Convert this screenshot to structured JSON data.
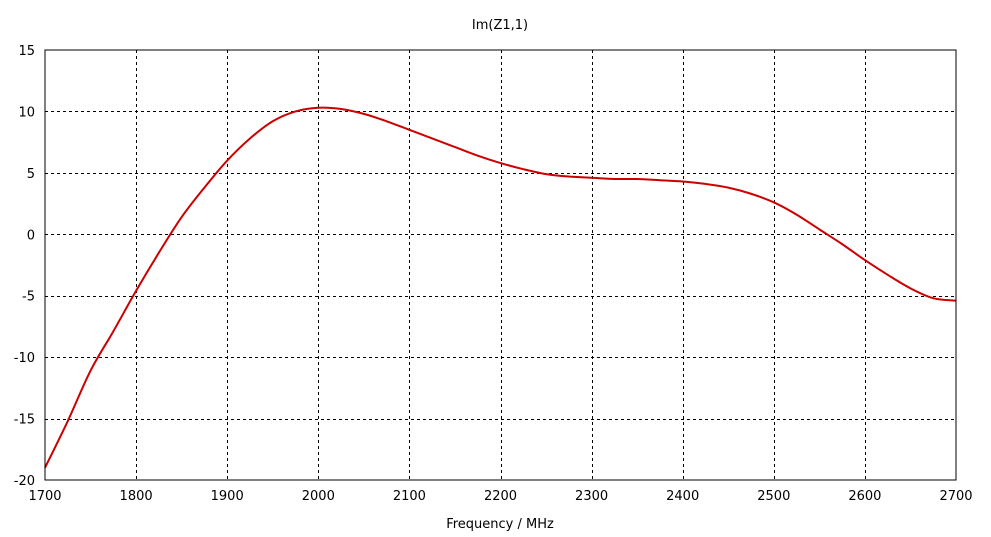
{
  "chart_data": {
    "type": "line",
    "title": "Im(Z1,1)",
    "xlabel": "Frequency / MHz",
    "ylabel": "",
    "xlim": [
      1700,
      2700
    ],
    "ylim": [
      -20,
      15
    ],
    "xticks": [
      1700,
      1800,
      1900,
      2000,
      2100,
      2200,
      2300,
      2400,
      2500,
      2600,
      2700
    ],
    "yticks": [
      -20,
      -15,
      -10,
      -5,
      0,
      5,
      10,
      15
    ],
    "xtick_labels": [
      "1700",
      "1800",
      "1900",
      "2000",
      "2100",
      "2200",
      "2300",
      "2400",
      "2500",
      "2600",
      "2700"
    ],
    "ytick_labels": [
      "-20",
      "-15",
      "-10",
      "-5",
      "0",
      "5",
      "10",
      "15"
    ],
    "grid": true,
    "grid_style": "dashed",
    "legend": "none",
    "series": [
      {
        "color": "#cc0000",
        "x": [
          1700,
          1725,
          1750,
          1775,
          1800,
          1825,
          1850,
          1875,
          1900,
          1925,
          1950,
          1975,
          2000,
          2025,
          2050,
          2075,
          2100,
          2125,
          2150,
          2175,
          2200,
          2225,
          2250,
          2275,
          2300,
          2325,
          2350,
          2375,
          2400,
          2425,
          2450,
          2475,
          2500,
          2525,
          2550,
          2575,
          2600,
          2625,
          2650,
          2675,
          2700
        ],
        "y": [
          -19.0,
          -15.2,
          -11.1,
          -7.9,
          -4.6,
          -1.5,
          1.4,
          3.8,
          6.0,
          7.8,
          9.2,
          10.0,
          10.3,
          10.2,
          9.8,
          9.2,
          8.5,
          7.8,
          7.1,
          6.4,
          5.8,
          5.3,
          4.9,
          4.7,
          4.6,
          4.5,
          4.5,
          4.4,
          4.3,
          4.1,
          3.8,
          3.3,
          2.6,
          1.6,
          0.4,
          -0.8,
          -2.1,
          -3.3,
          -4.4,
          -5.2,
          -5.4
        ]
      }
    ]
  }
}
